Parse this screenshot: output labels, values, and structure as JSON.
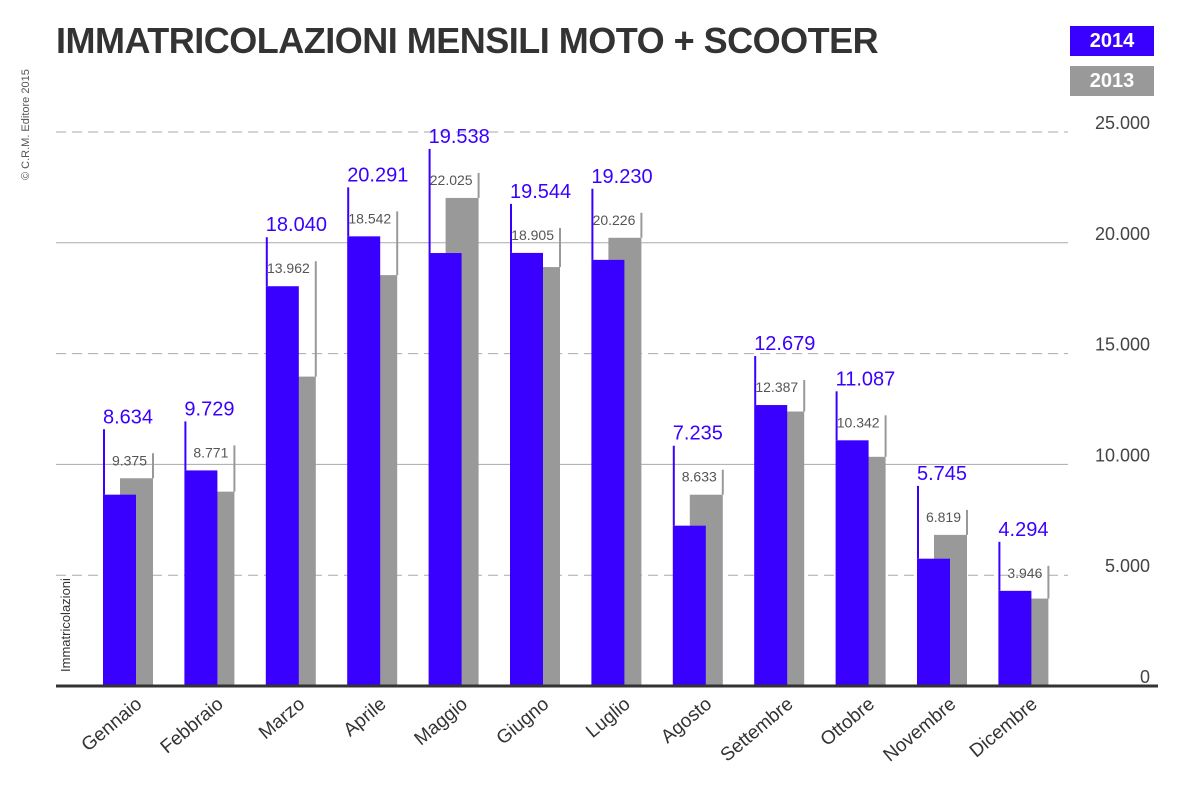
{
  "title": "IMMATRICOLAZIONI MENSILI MOTO + SCOOTER",
  "copyright": "© C.R.M. Editore 2015",
  "colors": {
    "2014": "#3a00ff",
    "2013": "#999999",
    "axis": "#333333",
    "grid": "#aaaaaa"
  },
  "chart_data": {
    "type": "bar",
    "title": "IMMATRICOLAZIONI MENSILI MOTO + SCOOTER",
    "ylabel": "Immatricolazioni",
    "xlabel": "",
    "ylim": [
      0,
      25000
    ],
    "ytick_values": [
      0,
      5000,
      10000,
      15000,
      20000,
      25000
    ],
    "ytick_labels": [
      "0",
      "5.000",
      "10.000",
      "15.000",
      "20.000",
      "25.000"
    ],
    "grid": true,
    "legend_placement": "top-right",
    "categories": [
      "Gennaio",
      "Febbraio",
      "Marzo",
      "Aprile",
      "Maggio",
      "Giugno",
      "Luglio",
      "Agosto",
      "Settembre",
      "Ottobre",
      "Novembre",
      "Dicembre"
    ],
    "series": [
      {
        "name": "2014",
        "values": [
          8634,
          9729,
          18040,
          20291,
          19538,
          19544,
          19230,
          7235,
          12679,
          11087,
          5745,
          4294
        ],
        "labels": [
          "8.634",
          "9.729",
          "18.040",
          "20.291",
          "19.538",
          "19.544",
          "19.230",
          "7.235",
          "12.679",
          "11.087",
          "5.745",
          "4.294"
        ]
      },
      {
        "name": "2013",
        "values": [
          9375,
          8771,
          13962,
          18542,
          22025,
          18905,
          20226,
          8633,
          12387,
          10342,
          6819,
          3946
        ],
        "labels": [
          "9.375",
          "8.771",
          "13.962",
          "18.542",
          "22.025",
          "18.905",
          "20.226",
          "8.633",
          "12.387",
          "10.342",
          "6.819",
          "3.946"
        ]
      }
    ]
  }
}
